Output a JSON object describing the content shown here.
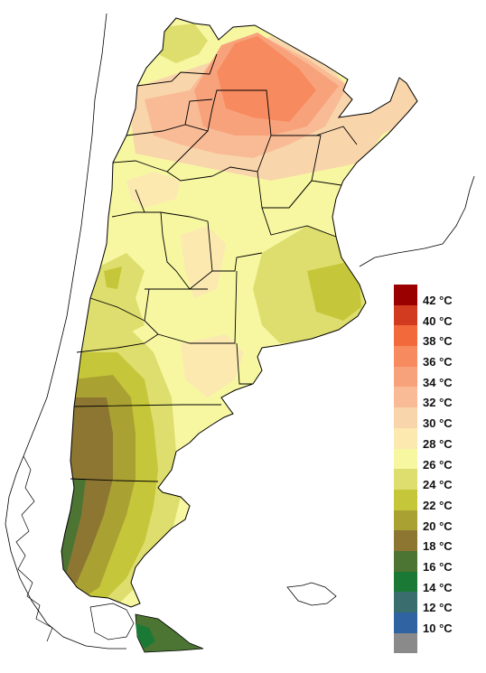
{
  "legend": {
    "items": [
      {
        "label": "42 °C",
        "color": "#9b0000"
      },
      {
        "label": "40 °C",
        "color": "#d23b20"
      },
      {
        "label": "38 °C",
        "color": "#f26a3c"
      },
      {
        "label": "36 °C",
        "color": "#f78a5e"
      },
      {
        "label": "34 °C",
        "color": "#f8a27c"
      },
      {
        "label": "32 °C",
        "color": "#f8bb95"
      },
      {
        "label": "30 °C",
        "color": "#f9d5ab"
      },
      {
        "label": "28 °C",
        "color": "#fbe9b0"
      },
      {
        "label": "26 °C",
        "color": "#f7f7a2"
      },
      {
        "label": "24 °C",
        "color": "#dede6e"
      },
      {
        "label": "22 °C",
        "color": "#c6c63a"
      },
      {
        "label": "20 °C",
        "color": "#aaa133"
      },
      {
        "label": "18 °C",
        "color": "#8c7632"
      },
      {
        "label": "16 °C",
        "color": "#4c7432"
      },
      {
        "label": "14 °C",
        "color": "#1a7a35"
      },
      {
        "label": "12 °C",
        "color": "#3a6e6e"
      },
      {
        "label": "10 °C",
        "color": "#2f63a2"
      },
      {
        "label": "",
        "color": "#8a8a8a"
      }
    ]
  },
  "map": {
    "land_color": "#ffffff",
    "border_color": "#000000"
  }
}
